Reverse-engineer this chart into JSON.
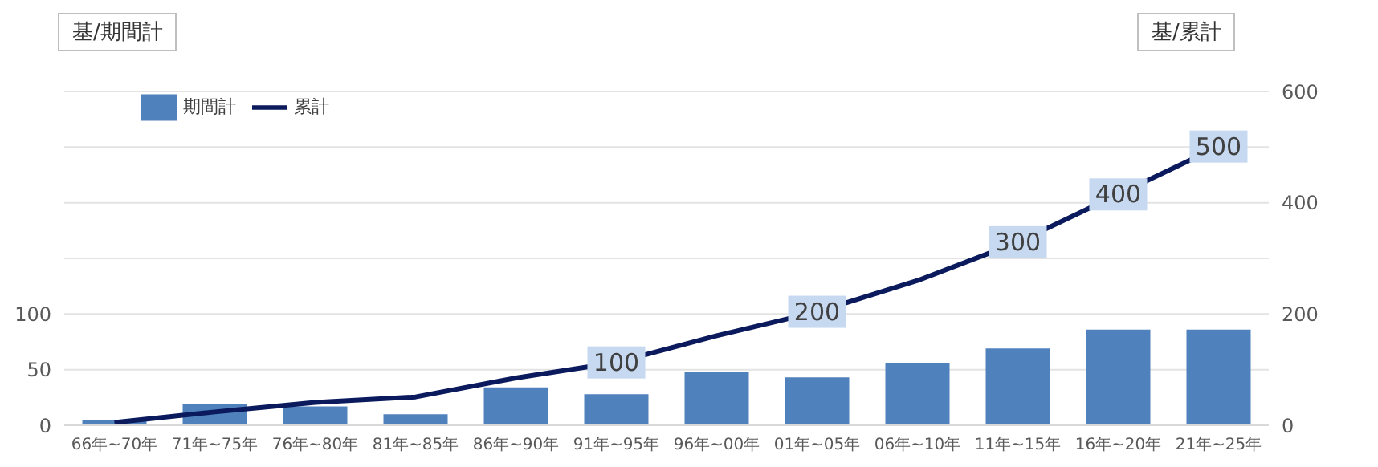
{
  "chart_data": {
    "type": "bar",
    "ylabel": "基/期間計",
    "y2label": "基/累計",
    "categories": [
      "66年~70年",
      "71年~75年",
      "76年~80年",
      "81年~85年",
      "86年~90年",
      "91年~95年",
      "96年~00年",
      "01年~05年",
      "06年~10年",
      "11年~15年",
      "16年~20年",
      "21年~25年"
    ],
    "series": [
      {
        "name": "期間計",
        "color": "#4f81bd",
        "values": [
          5,
          19,
          17,
          10,
          34,
          28,
          48,
          43,
          56,
          69,
          86,
          86
        ]
      },
      {
        "name": "累計",
        "type": "line",
        "axis": "y2",
        "color": "#0a1a5c",
        "values": [
          5,
          24,
          41,
          51,
          85,
          113,
          161,
          204,
          260,
          329,
          415,
          501
        ]
      }
    ],
    "ylim": [
      0,
      300
    ],
    "yticks": [
      0,
      50,
      100
    ],
    "y2lim": [
      0,
      600
    ],
    "y2ticks": [
      0,
      {
        "value": 100,
        "label": null
      },
      200,
      {
        "value": 300,
        "label": null
      },
      400,
      {
        "value": 500,
        "label": null
      },
      600
    ],
    "annotations": [
      "100",
      "200",
      "300",
      "400",
      "500"
    ],
    "grid": "y",
    "legend": "top left",
    "marker": "none",
    "line_style": "solid"
  }
}
